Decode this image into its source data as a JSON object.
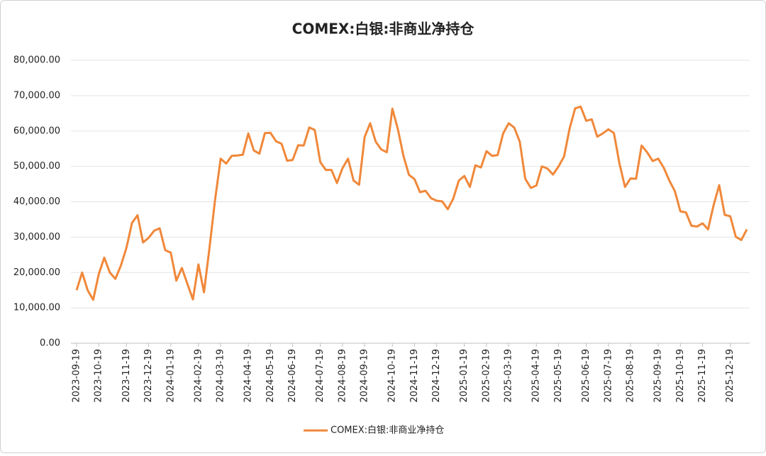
{
  "chart_data": {
    "type": "line",
    "title": "COMEX:白银:非商业净持仓",
    "categories": [
      "2023-09-19",
      null,
      null,
      null,
      "2023-10-19",
      null,
      null,
      null,
      null,
      "2023-11-19",
      null,
      null,
      null,
      "2023-12-19",
      null,
      null,
      null,
      "2024-01-19",
      null,
      null,
      null,
      null,
      "2024-02-19",
      null,
      null,
      null,
      "2024-03-19",
      null,
      null,
      null,
      null,
      "2024-04-19",
      null,
      null,
      null,
      "2024-05-19",
      null,
      null,
      null,
      "2024-06-19",
      null,
      null,
      null,
      null,
      "2024-07-19",
      null,
      null,
      null,
      "2024-08-19",
      null,
      null,
      null,
      "2024-09-19",
      null,
      null,
      null,
      null,
      "2024-10-19",
      null,
      null,
      null,
      "2024-11-19",
      null,
      null,
      null,
      "2024-12-19",
      null,
      null,
      null,
      null,
      "2025-01-19",
      null,
      null,
      null,
      "2025-02-19",
      null,
      null,
      null,
      "2025-03-19",
      null,
      null,
      null,
      null,
      "2025-04-19",
      null,
      null,
      null,
      "2025-05-19",
      null,
      null,
      null,
      null,
      "2025-06-19",
      null,
      null,
      null,
      "2025-07-19",
      null,
      null,
      null,
      "2025-08-19",
      null,
      null,
      null,
      null,
      "2025-09-19",
      null,
      null,
      null,
      "2025-10-19",
      null,
      null,
      null,
      "2025-11-19",
      null,
      null,
      null,
      null,
      "2025-12-19",
      null,
      null,
      null
    ],
    "series": [
      {
        "name": "COMEX:白银:非商业净持仓",
        "color": "#f0883a",
        "values": [
          15000,
          20000,
          15000,
          12300,
          19500,
          24200,
          20000,
          18200,
          22000,
          27000,
          34000,
          36200,
          28500,
          29800,
          31800,
          32500,
          26300,
          25600,
          17700,
          21300,
          16800,
          12400,
          22300,
          14400,
          27000,
          40500,
          52200,
          50800,
          53000,
          53100,
          53300,
          59300,
          54500,
          53600,
          59400,
          59500,
          57100,
          56400,
          51600,
          51800,
          56000,
          55900,
          61000,
          60300,
          51200,
          49000,
          49000,
          45300,
          49500,
          52200,
          46000,
          44800,
          58300,
          62200,
          57000,
          54800,
          54000,
          66300,
          60500,
          53000,
          47600,
          46400,
          42700,
          43100,
          41000,
          40300,
          40100,
          37900,
          40900,
          46000,
          47300,
          44200,
          50300,
          49700,
          54300,
          53000,
          53200,
          59300,
          62200,
          61000,
          57000,
          46500,
          43900,
          44600,
          50000,
          49400,
          47700,
          50000,
          52800,
          60700,
          66400,
          66900,
          62900,
          63300,
          58400,
          59300,
          60500,
          59400,
          50800,
          44200,
          46600,
          46500,
          55900,
          54000,
          51500,
          52200,
          49600,
          46000,
          43000,
          37300,
          37000,
          33200,
          33000,
          33900,
          32200,
          39000,
          44700,
          36300,
          35900,
          30100,
          29200,
          32200
        ]
      }
    ],
    "ylim": [
      0,
      80000
    ],
    "yticks": [
      {
        "value": 0,
        "label": "0.00"
      },
      {
        "value": 10000,
        "label": "10,000.00"
      },
      {
        "value": 20000,
        "label": "20,000.00"
      },
      {
        "value": 30000,
        "label": "30,000.00"
      },
      {
        "value": 40000,
        "label": "40,000.00"
      },
      {
        "value": 50000,
        "label": "50,000.00"
      },
      {
        "value": 60000,
        "label": "60,000.00"
      },
      {
        "value": 70000,
        "label": "70,000.00"
      },
      {
        "value": 80000,
        "label": "80,000.00"
      }
    ],
    "grid": true,
    "legend": "bottom"
  }
}
